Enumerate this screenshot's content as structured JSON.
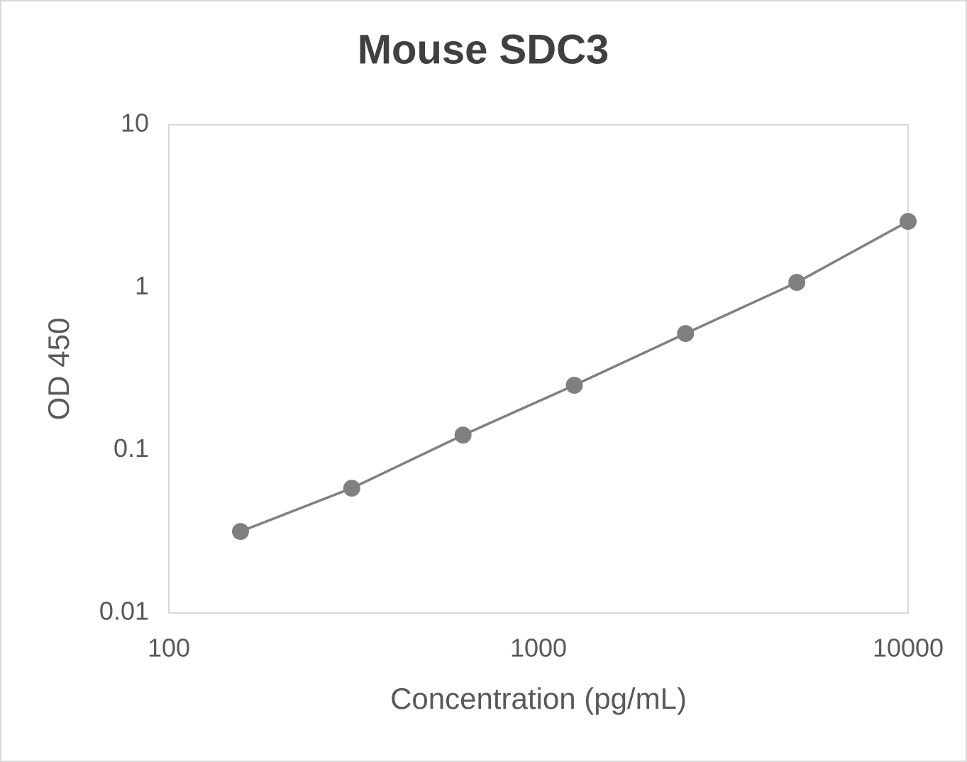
{
  "chart_data": {
    "type": "line",
    "title": "Mouse SDC3",
    "x_label": "Concentration (pg/mL)",
    "y_label": "OD 450",
    "x": [
      156.25,
      312.5,
      625,
      1250,
      2500,
      5000,
      10000
    ],
    "series": [
      {
        "color": "#808080",
        "values": [
          0.0317,
          0.0585,
          0.124,
          0.251,
          0.522,
          1.076,
          2.55
        ]
      }
    ],
    "markers": true,
    "xscale": "log",
    "yscale": "log",
    "xlim": [
      100,
      10000
    ],
    "ylim": [
      0.01,
      10
    ],
    "xticks": [
      100,
      1000,
      10000
    ],
    "yticks": [
      0.01,
      0.1,
      1,
      10
    ],
    "grid": false
  }
}
